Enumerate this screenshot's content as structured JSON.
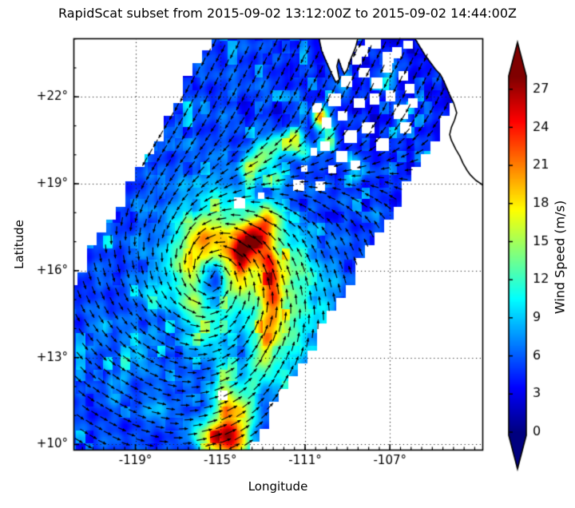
{
  "figure": {
    "title": "RapidScat subset from 2015-09-02 13:12:00Z to 2015-09-02 14:44:00Z",
    "background": "#ffffff"
  },
  "axes": {
    "xlabel": "Longitude",
    "ylabel": "Latitude",
    "xlim": [
      -121.92,
      -102.64
    ],
    "ylim": [
      9.82,
      24.02
    ],
    "x_ticks": [
      {
        "value": -119,
        "label": "-119°"
      },
      {
        "value": -115,
        "label": "-115°"
      },
      {
        "value": -111,
        "label": "-111°"
      },
      {
        "value": -107,
        "label": "-107°"
      }
    ],
    "y_ticks": [
      {
        "value": 22,
        "label": "+22°"
      },
      {
        "value": 19,
        "label": "+19°"
      },
      {
        "value": 16,
        "label": "+16°"
      },
      {
        "value": 13,
        "label": "+13°"
      },
      {
        "value": 10,
        "label": "+10°"
      }
    ],
    "grid_style": "dotted",
    "grid_color": "#222222",
    "minor_tick_step_x": 0.5,
    "minor_tick_step_y": 1.0
  },
  "colorbar": {
    "label": "Wind Speed (m/s)",
    "tick_values": [
      27,
      24,
      21,
      18,
      15,
      12,
      9,
      6,
      3,
      0
    ],
    "vmin": 0,
    "vmax": 28,
    "extend": "both",
    "colormap": "jet",
    "under_color": "#00007f",
    "over_color": "#7f0000"
  },
  "chart_data": {
    "type": "heatmap",
    "overlay": "quiver",
    "title": "RapidScat subset from 2015-09-02 13:12:00Z to 2015-09-02 14:44:00Z",
    "xlabel": "Longitude",
    "ylabel": "Latitude",
    "value_label": "Wind Speed (m/s)",
    "value_range": [
      0,
      28
    ],
    "storm_center": [
      -115.3,
      15.8
    ],
    "max_wind_ms": 28.5,
    "field_model": {
      "base_speed": 5.3,
      "northeast_dimming": 1.6,
      "vortex": {
        "center": [
          -115.3,
          15.8
        ],
        "amp": 9,
        "radius_deg": 1.2,
        "sharpness": 2.2,
        "asymmetry": 0.48,
        "asymmetry_dir_deg": 55
      },
      "blobs": [
        [
          -113.35,
          17.2,
          0.72,
          0.4,
          28,
          15.5
        ],
        [
          -114.0,
          16.35,
          0.3,
          6
        ],
        [
          -112.8,
          18.0,
          0.35,
          5
        ],
        [
          -112.8,
          16.4,
          0.35,
          7
        ],
        [
          -112.55,
          15.8,
          0.36,
          8
        ],
        [
          -112.5,
          15.05,
          0.36,
          8
        ],
        [
          -112.6,
          14.3,
          0.36,
          8
        ],
        [
          -112.8,
          13.6,
          0.35,
          7
        ],
        [
          -113.0,
          12.9,
          0.35,
          5
        ],
        [
          -114.75,
          10.35,
          0.5,
          16
        ],
        [
          -114.65,
          11.45,
          0.42,
          11
        ],
        [
          -114.85,
          12.3,
          0.38,
          6
        ],
        [
          -114.15,
          10.15,
          0.5,
          8
        ],
        [
          -113.8,
          11.0,
          0.4,
          6
        ],
        [
          -113.55,
          11.9,
          0.4,
          5
        ],
        [
          -115.45,
          10.15,
          0.45,
          7
        ],
        [
          -116.15,
          10.45,
          0.4,
          4
        ],
        [
          -113.6,
          19.6,
          0.35,
          8
        ],
        [
          -112.9,
          20.05,
          0.33,
          9
        ],
        [
          -112.25,
          20.35,
          0.3,
          7
        ],
        [
          -111.5,
          20.55,
          0.3,
          8
        ],
        [
          -110.3,
          21.3,
          0.24,
          17
        ],
        [
          -111.1,
          20.1,
          0.3,
          6
        ],
        [
          -112.4,
          19.2,
          0.3,
          6
        ],
        [
          -116.1,
          17.0,
          0.45,
          4.5
        ],
        [
          -116.6,
          15.9,
          0.4,
          4
        ],
        [
          -116.35,
          14.9,
          0.4,
          4.5
        ],
        [
          -115.7,
          13.85,
          0.4,
          4
        ],
        [
          -111.3,
          14.8,
          1.3,
          5.5
        ],
        [
          -112.2,
          12.9,
          0.9,
          4
        ],
        [
          -111.8,
          16.6,
          0.8,
          4
        ],
        [
          -114.4,
          14.4,
          0.55,
          -2.5
        ],
        [
          -118.9,
          13.3,
          0.45,
          4
        ],
        [
          -119.8,
          12.1,
          0.4,
          3.5
        ],
        [
          -117.9,
          11.3,
          0.4,
          3.5
        ],
        [
          -120.6,
          13.9,
          0.35,
          3
        ],
        [
          -118.3,
          15.1,
          0.4,
          3
        ],
        [
          -109.9,
          20.6,
          0.3,
          6
        ],
        [
          -108.6,
          19.5,
          0.28,
          5
        ],
        [
          -107.1,
          22.75,
          0.35,
          6
        ],
        [
          -106.4,
          21.3,
          0.3,
          6
        ],
        [
          -109.2,
          22.3,
          0.3,
          4
        ]
      ],
      "noise": {
        "amp1": 1.1,
        "amp2": 0.8,
        "speckle_cell_deg": 0.42,
        "speckle_hi_threshold": 0.84,
        "speckle_hi_gain": 26,
        "speckle_lo_threshold": 0.1,
        "speckle_lo_drop": 1.3
      }
    },
    "swath": {
      "left_edge": {
        "lon0": -115.35,
        "lat0": 24.02,
        "dlon_dlat": 0.7666
      },
      "right_edge": {
        "lon0": -113.5,
        "lat0": 10.0,
        "dlon_dlat": 0.8122
      },
      "edge_step_deg": 0.45
    },
    "quiver": {
      "rotation": "counterclockwise",
      "inflow": 0.3,
      "ambient_dir": [
        -0.42,
        -0.91
      ],
      "ambient_blend_lat_start": 17.2,
      "ambient_blend_lat_span": 4.6,
      "grid_spacing_px": 13.2,
      "arrow_color": "#000000"
    },
    "coastline": {
      "mainland": [
        [
          -105.85,
          24.05
        ],
        [
          -105.6,
          23.75
        ],
        [
          -105.35,
          23.45
        ],
        [
          -105.15,
          23.25
        ],
        [
          -104.85,
          22.95
        ],
        [
          -104.6,
          22.75
        ],
        [
          -104.4,
          22.45
        ],
        [
          -104.2,
          22.1
        ],
        [
          -104.0,
          21.8
        ],
        [
          -103.85,
          21.45
        ],
        [
          -103.95,
          21.2
        ],
        [
          -104.1,
          20.95
        ],
        [
          -104.18,
          20.7
        ],
        [
          -104.1,
          20.5
        ],
        [
          -103.9,
          20.2
        ],
        [
          -103.7,
          19.95
        ],
        [
          -103.55,
          19.7
        ],
        [
          -103.35,
          19.45
        ],
        [
          -103.2,
          19.3
        ],
        [
          -102.95,
          19.12
        ],
        [
          -102.7,
          19.0
        ],
        [
          -102.5,
          18.88
        ]
      ],
      "baja_tip": [
        [
          -110.35,
          24.05
        ],
        [
          -110.22,
          23.6
        ],
        [
          -110.05,
          23.3
        ],
        [
          -109.9,
          23.05
        ],
        [
          -109.75,
          22.8
        ],
        [
          -109.55,
          22.5
        ],
        [
          -109.38,
          22.6
        ],
        [
          -109.5,
          23.05
        ],
        [
          -109.42,
          23.3
        ],
        [
          -109.28,
          23.0
        ],
        [
          -109.15,
          22.78
        ],
        [
          -109.0,
          22.95
        ],
        [
          -108.85,
          23.3
        ],
        [
          -108.62,
          23.7
        ],
        [
          -108.5,
          24.05
        ]
      ]
    },
    "missing_data_cells": [
      [
        -114.1,
        18.35,
        0.22
      ],
      [
        -111.3,
        18.95,
        0.24
      ],
      [
        -110.28,
        18.95,
        0.2
      ],
      [
        -114.9,
        11.7,
        0.18
      ],
      [
        -113.1,
        18.6,
        0.14
      ],
      [
        -110.45,
        21.65,
        0.2
      ],
      [
        -110.0,
        21.1,
        0.22
      ],
      [
        -109.6,
        21.9,
        0.26
      ],
      [
        -109.25,
        21.35,
        0.22
      ],
      [
        -108.85,
        20.65,
        0.26
      ],
      [
        -108.45,
        21.8,
        0.22
      ],
      [
        -108.05,
        20.95,
        0.26
      ],
      [
        -107.75,
        21.95,
        0.22
      ],
      [
        -107.35,
        20.35,
        0.26
      ],
      [
        -108.65,
        19.65,
        0.22
      ],
      [
        -109.3,
        19.95,
        0.24
      ],
      [
        -110.05,
        20.3,
        0.2
      ],
      [
        -109.05,
        22.55,
        0.24
      ],
      [
        -108.25,
        22.85,
        0.22
      ],
      [
        -107.65,
        22.5,
        0.24
      ],
      [
        -107.0,
        22.05,
        0.22
      ],
      [
        -106.5,
        21.5,
        0.3
      ],
      [
        -106.3,
        20.95,
        0.24
      ],
      [
        -107.1,
        23.35,
        0.24
      ],
      [
        -106.4,
        22.75,
        0.2
      ],
      [
        -108.35,
        23.6,
        0.24
      ],
      [
        -107.7,
        23.85,
        0.2
      ],
      [
        -106.7,
        23.55,
        0.22
      ],
      [
        -107.15,
        23.0,
        0.2
      ],
      [
        -106.05,
        22.3,
        0.2
      ],
      [
        -106.15,
        23.8,
        0.18
      ],
      [
        -109.75,
        19.5,
        0.18
      ],
      [
        -110.6,
        20.1,
        0.16
      ],
      [
        -111.05,
        19.55,
        0.15
      ],
      [
        -105.95,
        21.8,
        0.2
      ],
      [
        -108.0,
        23.9,
        0.2
      ],
      [
        -108.55,
        23.3,
        0.2
      ]
    ]
  }
}
